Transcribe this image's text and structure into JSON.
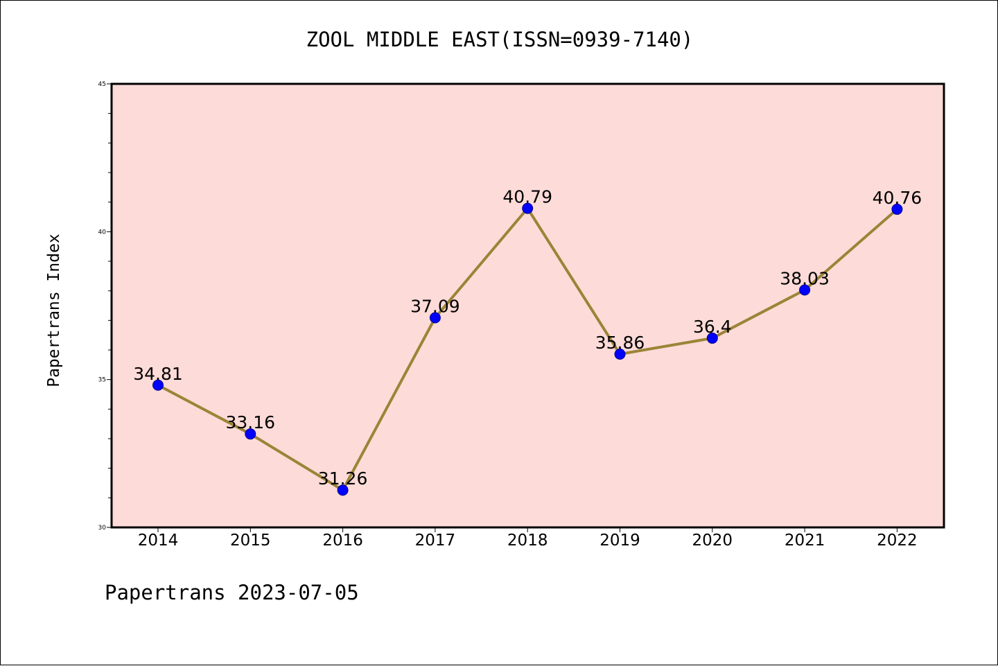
{
  "chart_data": {
    "type": "line",
    "title": "ZOOL MIDDLE EAST(ISSN=0939-7140)",
    "xlabel": "",
    "ylabel": "Papertrans Index",
    "categories": [
      "2014",
      "2015",
      "2016",
      "2017",
      "2018",
      "2019",
      "2020",
      "2021",
      "2022"
    ],
    "series": [
      {
        "values": [
          34.81,
          33.16,
          31.26,
          37.09,
          40.79,
          35.86,
          36.4,
          38.03,
          40.76
        ],
        "labels": [
          "34.81",
          "33.16",
          "31.26",
          "37.09",
          "40.79",
          "35.86",
          "36.4",
          "38.03",
          "40.76"
        ]
      }
    ],
    "ylim": [
      30,
      45
    ],
    "yticks": [
      "30",
      "35",
      "40",
      "45"
    ],
    "grid": false,
    "legend": "none",
    "colors": {
      "plot_background": "#fddbd8",
      "line": "#9b8437",
      "marker_fill": "#0000ff",
      "marker_edge": "#00008b",
      "frame": "#000000"
    }
  },
  "footer": {
    "text": "Papertrans 2023-07-05"
  }
}
